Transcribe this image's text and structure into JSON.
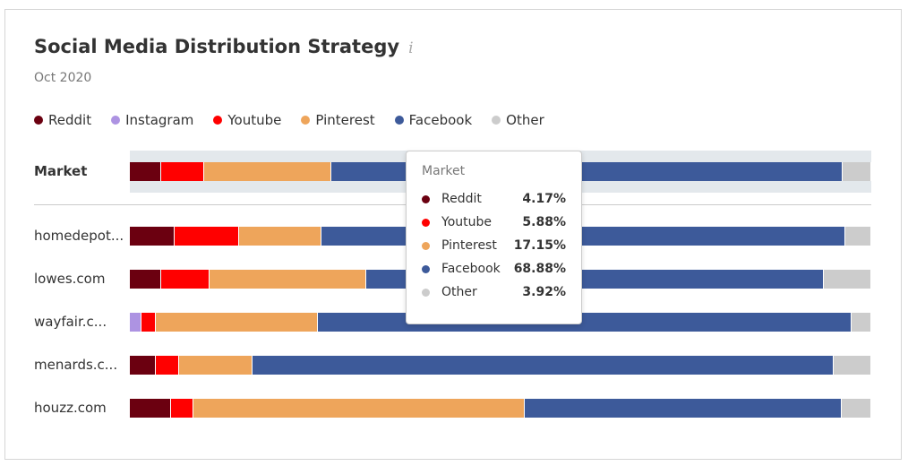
{
  "title": "Social Media Distribution Strategy",
  "subtitle": "Oct 2020",
  "chart_data": {
    "type": "bar",
    "stacked": true,
    "orientation": "horizontal",
    "title": "Social Media Distribution Strategy",
    "series_names": [
      "Reddit",
      "Instagram",
      "Youtube",
      "Pinterest",
      "Facebook",
      "Other"
    ],
    "colors": {
      "Reddit": "#6b0010",
      "Instagram": "#ad93e2",
      "Youtube": "#ff0000",
      "Pinterest": "#eea55b",
      "Facebook": "#3d5a9a",
      "Other": "#cccccc"
    },
    "legend": [
      {
        "name": "Reddit"
      },
      {
        "name": "Instagram"
      },
      {
        "name": "Youtube"
      },
      {
        "name": "Pinterest"
      },
      {
        "name": "Facebook"
      },
      {
        "name": "Other"
      }
    ],
    "market": {
      "label": "Market",
      "values": {
        "Reddit": 4.17,
        "Instagram": 0,
        "Youtube": 5.88,
        "Pinterest": 17.15,
        "Facebook": 68.88,
        "Other": 3.92
      }
    },
    "rows": [
      {
        "label": "homedepot...",
        "values": {
          "Reddit": 6.0,
          "Instagram": 0,
          "Youtube": 8.7,
          "Pinterest": 11.2,
          "Facebook": 70.6,
          "Other": 3.5
        }
      },
      {
        "label": "lowes.com",
        "values": {
          "Reddit": 4.2,
          "Instagram": 0,
          "Youtube": 6.6,
          "Pinterest": 21.1,
          "Facebook": 61.7,
          "Other": 6.4
        }
      },
      {
        "label": "wayfair.c...",
        "values": {
          "Reddit": 0,
          "Instagram": 1.6,
          "Youtube": 1.9,
          "Pinterest": 21.9,
          "Facebook": 71.9,
          "Other": 2.7
        }
      },
      {
        "label": "menards.c...",
        "values": {
          "Reddit": 3.5,
          "Instagram": 0,
          "Youtube": 3.1,
          "Pinterest": 9.9,
          "Facebook": 78.4,
          "Other": 5.1
        }
      },
      {
        "label": "houzz.com",
        "values": {
          "Reddit": 5.6,
          "Instagram": 0,
          "Youtube": 3.0,
          "Pinterest": 44.7,
          "Facebook": 42.7,
          "Other": 4.0
        }
      }
    ],
    "xlim": [
      0,
      100
    ]
  },
  "tooltip": {
    "title": "Market",
    "items": [
      {
        "name": "Reddit",
        "value": "4.17%"
      },
      {
        "name": "Youtube",
        "value": "5.88%"
      },
      {
        "name": "Pinterest",
        "value": "17.15%"
      },
      {
        "name": "Facebook",
        "value": "68.88%"
      },
      {
        "name": "Other",
        "value": "3.92%"
      }
    ]
  }
}
